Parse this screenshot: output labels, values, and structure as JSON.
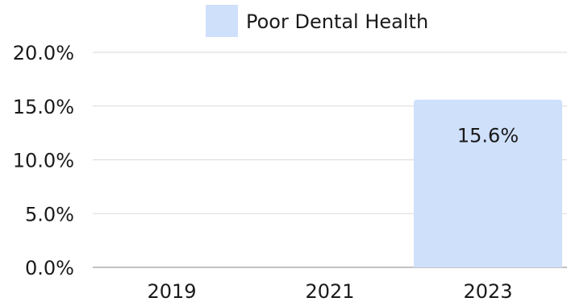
{
  "chart_data": {
    "type": "bar",
    "categories": [
      "2019",
      "2021",
      "2023"
    ],
    "series": [
      {
        "name": "Poor Dental Health",
        "values": [
          null,
          null,
          15.6
        ],
        "data_labels": [
          "",
          "",
          "15.6%"
        ],
        "color": "#cfe0fb"
      }
    ],
    "ylim": [
      0,
      20
    ],
    "yticks": [
      0,
      5,
      10,
      15,
      20
    ],
    "ytick_labels": [
      "0.0%",
      "5.0%",
      "10.0%",
      "15.0%",
      "20.0%"
    ],
    "grid": true,
    "legend_position": "top-center",
    "title": "",
    "xlabel": "",
    "ylabel": ""
  }
}
